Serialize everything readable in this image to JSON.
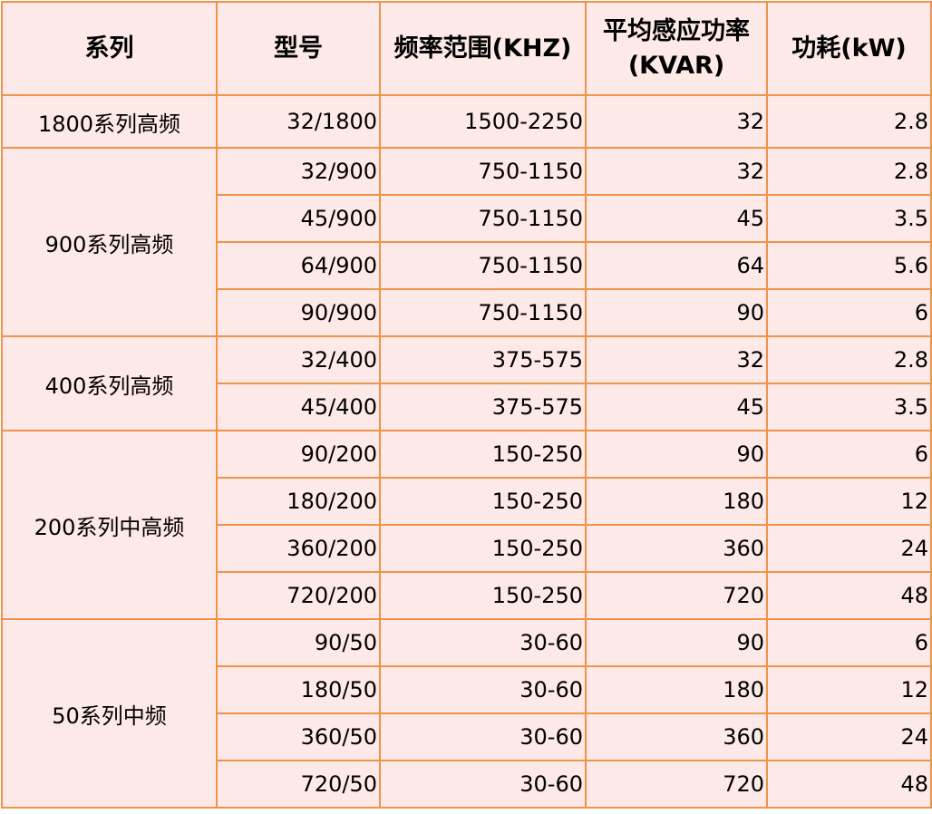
{
  "headers": {
    "series": "系列",
    "model": "型号",
    "freq": "频率范围(KHZ)",
    "power": "平均感应功率(KVAR)",
    "consumption": "功耗(kW)"
  },
  "groups": [
    {
      "series": "1800系列高频",
      "rows": [
        {
          "model": "32/1800",
          "freq": "1500-2250",
          "power": "32",
          "consumption": "2.8"
        }
      ]
    },
    {
      "series": "900系列高频",
      "rows": [
        {
          "model": "32/900",
          "freq": "750-1150",
          "power": "32",
          "consumption": "2.8"
        },
        {
          "model": "45/900",
          "freq": "750-1150",
          "power": "45",
          "consumption": "3.5"
        },
        {
          "model": "64/900",
          "freq": "750-1150",
          "power": "64",
          "consumption": "5.6"
        },
        {
          "model": "90/900",
          "freq": "750-1150",
          "power": "90",
          "consumption": "6"
        }
      ]
    },
    {
      "series": "400系列高频",
      "rows": [
        {
          "model": "32/400",
          "freq": "375-575",
          "power": "32",
          "consumption": "2.8"
        },
        {
          "model": "45/400",
          "freq": "375-575",
          "power": "45",
          "consumption": "3.5"
        }
      ]
    },
    {
      "series": "200系列中高频",
      "rows": [
        {
          "model": "90/200",
          "freq": "150-250",
          "power": "90",
          "consumption": "6"
        },
        {
          "model": "180/200",
          "freq": "150-250",
          "power": "180",
          "consumption": "12"
        },
        {
          "model": "360/200",
          "freq": "150-250",
          "power": "360",
          "consumption": "24"
        },
        {
          "model": "720/200",
          "freq": "150-250",
          "power": "720",
          "consumption": "48"
        }
      ]
    },
    {
      "series": "50系列中频",
      "rows": [
        {
          "model": "90/50",
          "freq": "30-60",
          "power": "90",
          "consumption": "6"
        },
        {
          "model": "180/50",
          "freq": "30-60",
          "power": "180",
          "consumption": "12"
        },
        {
          "model": "360/50",
          "freq": "30-60",
          "power": "360",
          "consumption": "24"
        },
        {
          "model": "720/50",
          "freq": "30-60",
          "power": "720",
          "consumption": "48"
        }
      ]
    }
  ],
  "colors": {
    "cell_background": "#fde9e7",
    "border": "#f0924a"
  }
}
